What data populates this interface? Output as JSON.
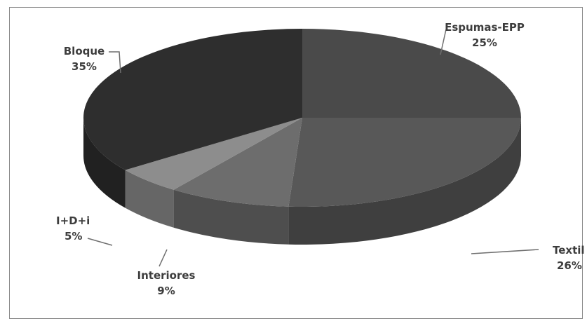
{
  "chart_data": {
    "type": "pie",
    "style": "3d",
    "title": "",
    "slices": [
      {
        "name": "Espumas-EPP",
        "value": 25,
        "label": "25%",
        "color": "#4a4a4a"
      },
      {
        "name": "Textil",
        "value": 26,
        "label": "26%",
        "color": "#585858"
      },
      {
        "name": "Interiores",
        "value": 9,
        "label": "9%",
        "color": "#6d6d6d"
      },
      {
        "name": "I+D+i",
        "value": 5,
        "label": "5%",
        "color": "#8d8d8d"
      },
      {
        "name": "Bloque",
        "value": 35,
        "label": "35%",
        "color": "#2e2e2e"
      }
    ]
  }
}
